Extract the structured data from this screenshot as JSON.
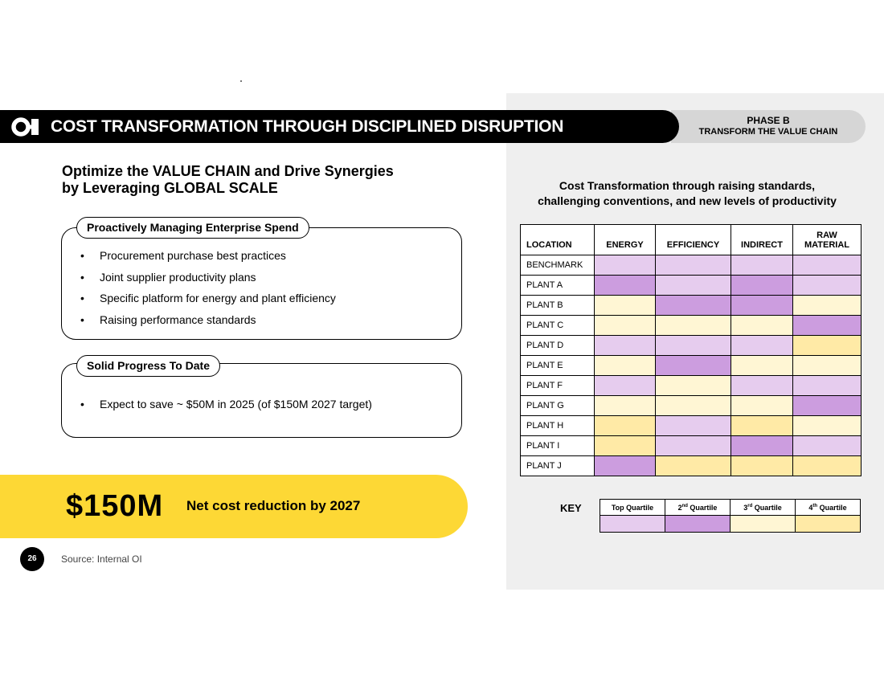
{
  "header": {
    "title": "COST TRANSFORMATION THROUGH DISCIPLINED DISRUPTION",
    "phase_line1": "PHASE B",
    "phase_line2": "TRANSFORM THE VALUE CHAIN",
    "logo_icon": "oi-logo-icon"
  },
  "headline": {
    "line1": "Optimize the VALUE CHAIN and Drive Synergies",
    "line2": "by Leveraging GLOBAL SCALE"
  },
  "spend_box": {
    "label": "Proactively Managing Enterprise Spend",
    "bullets": [
      "Procurement purchase best practices",
      "Joint supplier productivity plans",
      "Specific platform for energy and plant efficiency",
      "Raising performance standards"
    ]
  },
  "progress_box": {
    "label": "Solid Progress To Date",
    "bullets": [
      "Expect to save ~ $50M in 2025 (of $150M 2027 target)"
    ]
  },
  "banner": {
    "amount": "$150M",
    "text": "Net cost reduction by 2027"
  },
  "footer": {
    "page_number": "26",
    "source": "Source: Internal OI"
  },
  "chart_data": {
    "type": "heatmap",
    "title_line1": "Cost Transformation through raising standards,",
    "title_line2": "challenging conventions, and new levels of productivity",
    "columns": [
      "LOCATION",
      "ENERGY",
      "EFFICIENCY",
      "INDIRECT",
      "RAW MATERIAL"
    ],
    "column_header_raw_line1": "RAW",
    "column_header_raw_line2": "MATERIAL",
    "rows": [
      {
        "label": "BENCHMARK",
        "quartiles": [
          1,
          1,
          1,
          1
        ]
      },
      {
        "label": "PLANT A",
        "quartiles": [
          2,
          1,
          2,
          1
        ]
      },
      {
        "label": "PLANT B",
        "quartiles": [
          3,
          2,
          2,
          3
        ]
      },
      {
        "label": "PLANT C",
        "quartiles": [
          3,
          3,
          3,
          2
        ]
      },
      {
        "label": "PLANT D",
        "quartiles": [
          1,
          1,
          1,
          4
        ]
      },
      {
        "label": "PLANT E",
        "quartiles": [
          3,
          2,
          3,
          3
        ]
      },
      {
        "label": "PLANT F",
        "quartiles": [
          1,
          3,
          1,
          1
        ]
      },
      {
        "label": "PLANT G",
        "quartiles": [
          3,
          3,
          3,
          2
        ]
      },
      {
        "label": "PLANT H",
        "quartiles": [
          4,
          1,
          4,
          3
        ]
      },
      {
        "label": "PLANT I",
        "quartiles": [
          4,
          1,
          2,
          1
        ]
      },
      {
        "label": "PLANT J",
        "quartiles": [
          2,
          4,
          4,
          4
        ]
      }
    ],
    "key_label": "KEY",
    "key": [
      {
        "base": "Top Quartile",
        "suffix": "",
        "color": "#e6ccee"
      },
      {
        "base": "2",
        "suffix": "nd",
        "rest": " Quartile",
        "color": "#cc9ddf"
      },
      {
        "base": "3",
        "suffix": "rd",
        "rest": " Quartile",
        "color": "#fff6d4"
      },
      {
        "base": "4",
        "suffix": "th",
        "rest": " Quartile",
        "color": "#ffeaa6"
      }
    ],
    "quartile_colors": {
      "1": "#e6ccee",
      "2": "#cc9ddf",
      "3": "#fff6d4",
      "4": "#ffeaa6"
    }
  },
  "colors": {
    "banner_yellow": "#fdd835",
    "panel_gray": "#efefef",
    "phase_gray": "#d6d6d6"
  }
}
